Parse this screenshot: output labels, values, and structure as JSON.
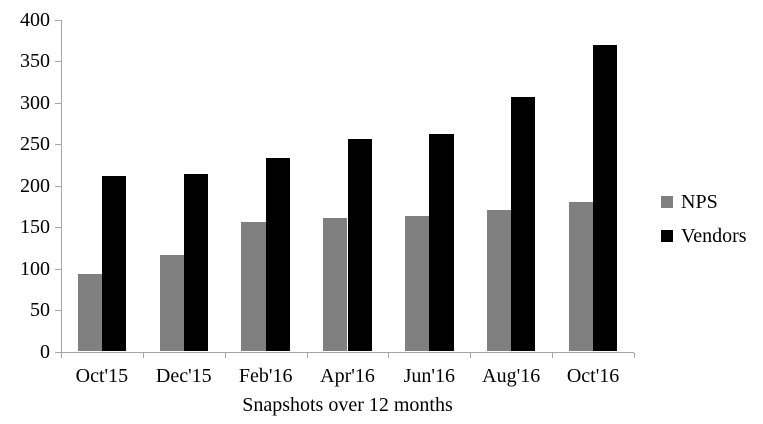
{
  "chart_data": {
    "type": "bar",
    "title": "",
    "xlabel": "Snapshots over 12 months",
    "ylabel": "",
    "categories": [
      "Oct'15",
      "Dec'15",
      "Feb'16",
      "Apr'16",
      "Jun'16",
      "Aug'16",
      "Oct'16"
    ],
    "series": [
      {
        "name": "NPS",
        "color": "#808080",
        "values": [
          93,
          117,
          156,
          161,
          163,
          171,
          180
        ]
      },
      {
        "name": "Vendors",
        "color": "#000000",
        "values": [
          212,
          214,
          233,
          256,
          262,
          307,
          370
        ]
      }
    ],
    "ylim": [
      0,
      400
    ],
    "ytick_step": 50,
    "grid": false,
    "legend_position": "right",
    "axis_color": "#a6a6a6",
    "text_color": "#000000",
    "background_color": "#ffffff"
  }
}
